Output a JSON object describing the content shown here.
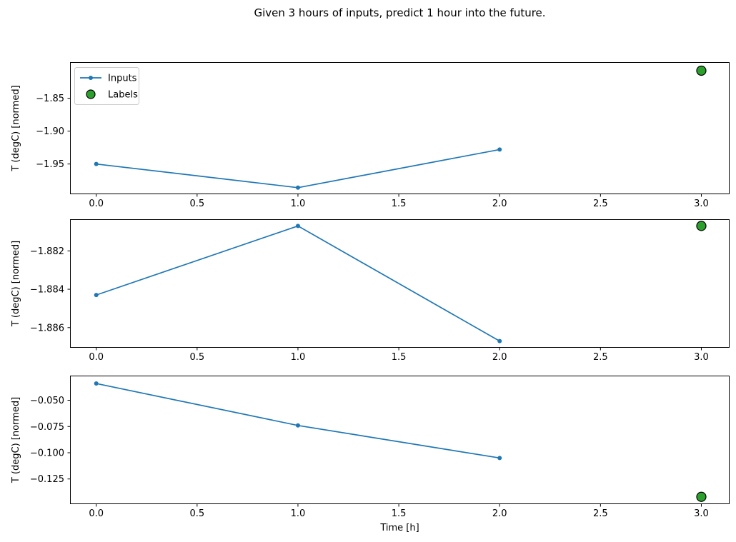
{
  "title": "Given 3 hours of inputs, predict 1 hour into the future.",
  "xlabel": "Time [h]",
  "legend": {
    "inputs_label": "Inputs",
    "labels_label": "Labels"
  },
  "colors": {
    "inputs_line": "#1f77b4",
    "label_marker_fill": "#2ca02c",
    "label_marker_edge": "#000000",
    "axis_color": "#000000",
    "legend_border": "#cccccc",
    "background": "#ffffff",
    "text": "#000000"
  },
  "chart_data": [
    {
      "type": "line",
      "ylabel": "T (degC) [normed]",
      "series": [
        {
          "name": "Inputs",
          "style": "line+marker",
          "x": [
            0,
            1,
            2
          ],
          "y": [
            -1.95,
            -1.986,
            -1.928
          ]
        },
        {
          "name": "Labels",
          "style": "scatter",
          "x": [
            3
          ],
          "y": [
            -1.808
          ]
        }
      ],
      "xlim": [
        -0.13,
        3.14
      ],
      "ylim": [
        -1.996,
        -1.795
      ],
      "xticks": [
        0.0,
        0.5,
        1.0,
        1.5,
        2.0,
        2.5,
        3.0
      ],
      "xtick_labels": [
        "0.0",
        "0.5",
        "1.0",
        "1.5",
        "2.0",
        "2.5",
        "3.0"
      ],
      "yticks": [
        -1.85,
        -1.9,
        -1.95
      ],
      "ytick_labels": [
        "−1.85",
        "−1.90",
        "−1.95"
      ],
      "legend": true,
      "xlabel": "",
      "grid": false
    },
    {
      "type": "line",
      "ylabel": "T (degC) [normed]",
      "series": [
        {
          "name": "Inputs",
          "style": "line+marker",
          "x": [
            0,
            1,
            2
          ],
          "y": [
            -1.8843,
            -1.8807,
            -1.8867
          ]
        },
        {
          "name": "Labels",
          "style": "scatter",
          "x": [
            3
          ],
          "y": [
            -1.8807
          ]
        }
      ],
      "xlim": [
        -0.13,
        3.14
      ],
      "ylim": [
        -1.88705,
        -1.88035
      ],
      "xticks": [
        0.0,
        0.5,
        1.0,
        1.5,
        2.0,
        2.5,
        3.0
      ],
      "xtick_labels": [
        "0.0",
        "0.5",
        "1.0",
        "1.5",
        "2.0",
        "2.5",
        "3.0"
      ],
      "yticks": [
        -1.882,
        -1.884,
        -1.886
      ],
      "ytick_labels": [
        "−1.882",
        "−1.884",
        "−1.886"
      ],
      "legend": false,
      "xlabel": "",
      "grid": false
    },
    {
      "type": "line",
      "ylabel": "T (degC) [normed]",
      "series": [
        {
          "name": "Inputs",
          "style": "line+marker",
          "x": [
            0,
            1,
            2
          ],
          "y": [
            -0.034,
            -0.074,
            -0.105
          ]
        },
        {
          "name": "Labels",
          "style": "scatter",
          "x": [
            3
          ],
          "y": [
            -0.142
          ]
        }
      ],
      "xlim": [
        -0.13,
        3.14
      ],
      "ylim": [
        -0.149,
        -0.0265
      ],
      "xticks": [
        0.0,
        0.5,
        1.0,
        1.5,
        2.0,
        2.5,
        3.0
      ],
      "xtick_labels": [
        "0.0",
        "0.5",
        "1.0",
        "1.5",
        "2.0",
        "2.5",
        "3.0"
      ],
      "yticks": [
        -0.05,
        -0.075,
        -0.1,
        -0.125
      ],
      "ytick_labels": [
        "−0.050",
        "−0.075",
        "−0.100",
        "−0.125"
      ],
      "legend": false,
      "xlabel": "Time [h]",
      "grid": false
    }
  ]
}
